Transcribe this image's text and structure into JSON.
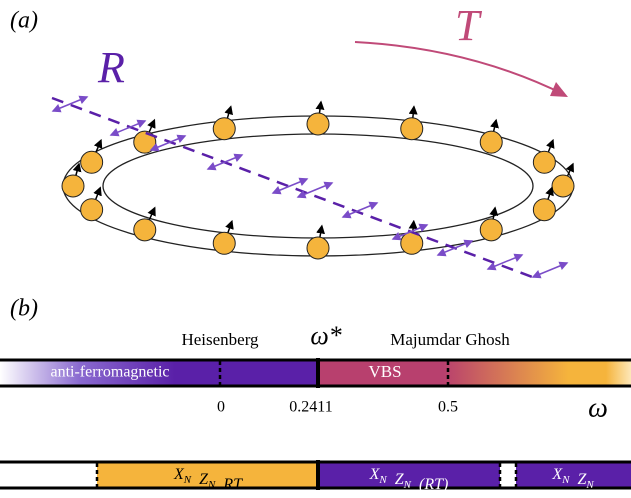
{
  "panel_a": {
    "label": "(a)",
    "translation_label": "T",
    "reflection_label": "R"
  },
  "panel_b": {
    "label": "(b)",
    "phase_bar": {
      "left_title": "Heisenberg",
      "critical_point": "ω*",
      "right_title": "Majumdar Ghosh",
      "regions": [
        "anti-ferromagnetic",
        "VBS"
      ],
      "tick_labels": [
        "0",
        "0.2411",
        "0.5"
      ],
      "axis_label": "ω"
    },
    "symmetry_bar": {
      "regions": [
        {
          "terms": [
            {
              "base": "X",
              "sub": "N"
            },
            {
              "base": "Z",
              "sub": "N"
            }
          ],
          "suffix": "RT"
        },
        {
          "terms": [
            {
              "base": "X",
              "sub": "N"
            },
            {
              "base": "Z",
              "sub": "N"
            }
          ],
          "suffix": "(RT)"
        },
        {
          "terms": [
            {
              "base": "X",
              "sub": "N"
            },
            {
              "base": "Z",
              "sub": "N"
            }
          ]
        }
      ]
    }
  }
}
